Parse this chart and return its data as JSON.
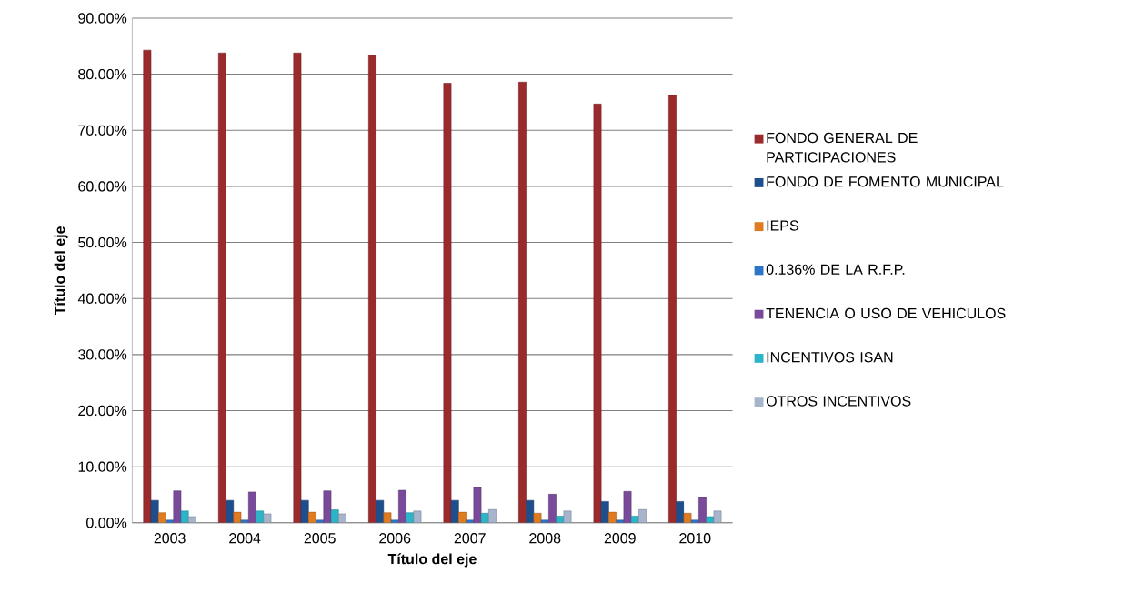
{
  "chart_data": {
    "type": "bar",
    "xlabel": "Título del eje",
    "ylabel": "Título del eje",
    "categories": [
      "2003",
      "2004",
      "2005",
      "2006",
      "2007",
      "2008",
      "2009",
      "2010"
    ],
    "series": [
      {
        "name": "FONDO GENERAL DE PARTICIPACIONES",
        "color": "#9b2a2c",
        "values": [
          84.3,
          83.8,
          83.8,
          83.4,
          78.4,
          78.6,
          74.7,
          76.2
        ]
      },
      {
        "name": "FONDO DE FOMENTO MUNICIPAL",
        "color": "#1f4e8c",
        "values": [
          4.0,
          4.0,
          4.0,
          4.0,
          4.0,
          4.0,
          3.8,
          3.8
        ]
      },
      {
        "name": "IEPS",
        "color": "#e07b20",
        "values": [
          1.8,
          1.9,
          1.9,
          1.8,
          1.9,
          1.7,
          1.9,
          1.7
        ]
      },
      {
        "name": "0.136% DE LA R.F.P.",
        "color": "#2e75c8",
        "values": [
          0.5,
          0.5,
          0.5,
          0.5,
          0.5,
          0.5,
          0.5,
          0.5
        ]
      },
      {
        "name": "TENENCIA O USO DE VEHICULOS",
        "color": "#7a4a9a",
        "values": [
          5.7,
          5.5,
          5.7,
          5.8,
          6.3,
          5.1,
          5.6,
          4.5
        ]
      },
      {
        "name": "INCENTIVOS ISAN",
        "color": "#2cb5c8",
        "values": [
          2.1,
          2.1,
          2.3,
          1.8,
          1.7,
          1.2,
          1.2,
          1.1
        ]
      },
      {
        "name": "OTROS INCENTIVOS",
        "color": "#a6b4cc",
        "values": [
          1.1,
          1.6,
          1.6,
          2.1,
          2.4,
          2.1,
          2.4,
          2.1
        ]
      }
    ],
    "ylim": [
      0,
      90
    ],
    "yticks": [
      {
        "value": 0,
        "label": "0.00%"
      },
      {
        "value": 10,
        "label": "10.00%"
      },
      {
        "value": 20,
        "label": "20.00%"
      },
      {
        "value": 30,
        "label": "30.00%"
      },
      {
        "value": 40,
        "label": "40.00%"
      },
      {
        "value": 50,
        "label": "50.00%"
      },
      {
        "value": 60,
        "label": "60.00%"
      },
      {
        "value": 70,
        "label": "70.00%"
      },
      {
        "value": 80,
        "label": "80.00%"
      },
      {
        "value": 90,
        "label": "90.00%"
      }
    ],
    "grid": "y",
    "legend": "right"
  }
}
